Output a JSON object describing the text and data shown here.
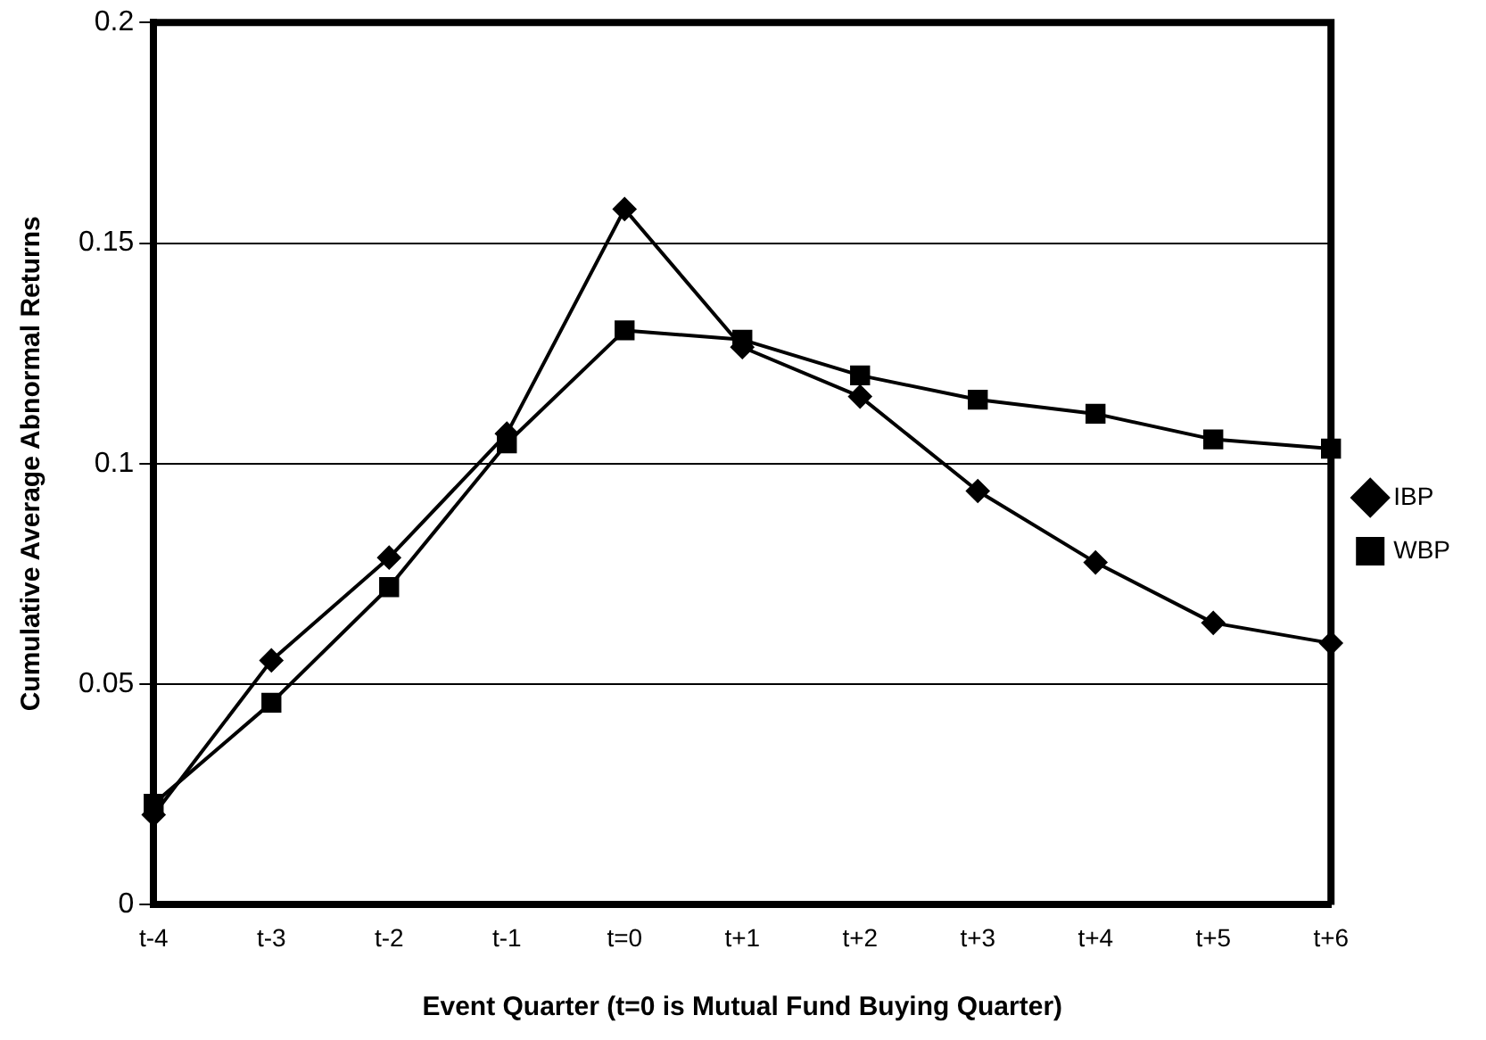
{
  "chart_data": {
    "type": "line",
    "xlabel": "Event Quarter (t=0 is Mutual Fund Buying Quarter)",
    "ylabel": "Cumulative Average Abnormal Returns",
    "categories": [
      "t-4",
      "t-3",
      "t-2",
      "t-1",
      "t=0",
      "t+1",
      "t+2",
      "t+3",
      "t+4",
      "t+5",
      "t+6"
    ],
    "series": [
      {
        "name": "IBP",
        "color": "#000000",
        "marker": "diamond",
        "values": [
          0.0204,
          0.0554,
          0.0787,
          0.1068,
          0.1577,
          0.1264,
          0.1152,
          0.0938,
          0.0776,
          0.0639,
          0.0593
        ]
      },
      {
        "name": "WBP",
        "color": "#000000",
        "marker": "square",
        "values": [
          0.0229,
          0.0458,
          0.072,
          0.1046,
          0.1302,
          0.1281,
          0.12,
          0.1145,
          0.1113,
          0.1055,
          0.1034
        ]
      }
    ],
    "ylim": [
      0,
      0.2
    ],
    "yticks": [
      0,
      0.05,
      0.1,
      0.15,
      0.2
    ],
    "grid": "y",
    "legend": "right",
    "line_style": "solid"
  }
}
